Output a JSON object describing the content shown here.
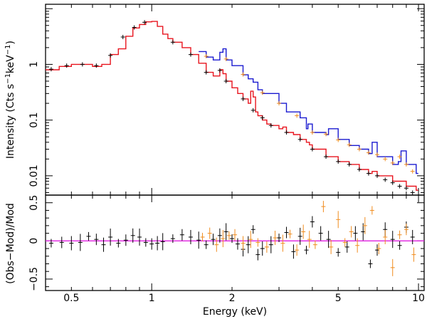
{
  "chart_data": [
    {
      "type": "line",
      "panel": "spectrum",
      "xlabel": "",
      "ylabel_prefix": "Intensity (Cts s",
      "ylabel_sup1": "−1",
      "ylabel_mid": "keV",
      "ylabel_sup2": "−1",
      "ylabel_suffix": ")",
      "xscale": "log",
      "yscale": "log",
      "xlim": [
        0.4,
        10.5
      ],
      "ylim": [
        0.0045,
        12
      ],
      "y_ticks": [
        {
          "value": 1,
          "label": "1"
        },
        {
          "value": 0.1,
          "label": "0.1"
        },
        {
          "value": 0.01,
          "label": "0.01"
        }
      ],
      "colors": {
        "black_data": "#000000",
        "orange_data": "#f08c1e",
        "red_model": "#e8141e",
        "blue_model": "#1a1ad0"
      },
      "series": [
        {
          "color_key": "red_model",
          "style": "step",
          "x": [
            0.4,
            0.45,
            0.5,
            0.55,
            0.6,
            0.65,
            0.7,
            0.75,
            0.8,
            0.85,
            0.9,
            0.95,
            1.0,
            1.05,
            1.1,
            1.15,
            1.2,
            1.3,
            1.4,
            1.5,
            1.6,
            1.7,
            1.8,
            1.85,
            1.9,
            2.0,
            2.1,
            2.2,
            2.3,
            2.35,
            2.4,
            2.45,
            2.5,
            2.6,
            2.7,
            2.8,
            3.0,
            3.1,
            3.2,
            3.4,
            3.6,
            3.8,
            3.9,
            4.0,
            4.5,
            5.0,
            5.5,
            6.0,
            6.5,
            6.7,
            7.0,
            8.0,
            9.0,
            9.8
          ],
          "y": [
            0.8,
            0.92,
            1.0,
            1.0,
            0.92,
            1.0,
            1.5,
            1.9,
            3.2,
            4.5,
            5.2,
            5.8,
            5.9,
            4.8,
            3.5,
            2.9,
            2.5,
            2.0,
            1.5,
            1.05,
            0.72,
            0.62,
            0.8,
            0.68,
            0.5,
            0.38,
            0.3,
            0.24,
            0.2,
            0.33,
            0.26,
            0.14,
            0.12,
            0.1,
            0.085,
            0.08,
            0.07,
            0.075,
            0.06,
            0.055,
            0.045,
            0.04,
            0.036,
            0.03,
            0.022,
            0.018,
            0.016,
            0.013,
            0.011,
            0.012,
            0.01,
            0.008,
            0.0065,
            0.0055
          ]
        },
        {
          "color_key": "blue_model",
          "style": "step",
          "x": [
            1.5,
            1.6,
            1.7,
            1.8,
            1.85,
            1.9,
            2.0,
            2.2,
            2.3,
            2.4,
            2.5,
            2.6,
            3.0,
            3.2,
            3.6,
            3.8,
            3.85,
            4.0,
            4.5,
            4.6,
            5.0,
            5.5,
            6.0,
            6.5,
            6.7,
            7.0,
            8.0,
            8.4,
            8.6,
            9.0,
            9.8
          ],
          "y": [
            1.7,
            1.35,
            1.2,
            1.65,
            1.9,
            1.2,
            0.95,
            0.65,
            0.55,
            0.48,
            0.35,
            0.3,
            0.2,
            0.14,
            0.11,
            0.07,
            0.085,
            0.06,
            0.055,
            0.07,
            0.045,
            0.035,
            0.03,
            0.025,
            0.04,
            0.022,
            0.016,
            0.018,
            0.028,
            0.016,
            0.011
          ]
        },
        {
          "color_key": "black_data",
          "style": "points",
          "x": [
            0.42,
            0.48,
            0.55,
            0.62,
            0.7,
            0.78,
            0.86,
            0.94,
            1.2,
            1.4,
            1.6,
            1.8,
            1.9,
            2.2,
            2.4,
            2.6,
            2.8,
            3.2,
            3.6,
            4.0,
            4.5,
            5.0,
            5.5,
            6.0,
            6.5,
            7.0,
            7.5,
            8.0,
            8.5,
            9.0,
            9.5
          ],
          "y": [
            0.82,
            0.95,
            1.0,
            0.95,
            1.45,
            3.1,
            4.6,
            5.7,
            2.5,
            1.5,
            0.72,
            0.78,
            0.5,
            0.24,
            0.15,
            0.11,
            0.08,
            0.06,
            0.045,
            0.03,
            0.022,
            0.018,
            0.016,
            0.013,
            0.011,
            0.01,
            0.0085,
            0.0075,
            0.0065,
            0.006,
            0.005
          ]
        },
        {
          "color_key": "orange_data",
          "style": "points",
          "x": [
            1.6,
            1.9,
            2.2,
            2.6,
            3.0,
            3.5,
            4.0,
            4.5,
            5.0,
            5.5,
            6.0,
            6.5,
            7.0,
            7.5,
            8.0,
            8.5,
            9.0,
            9.5
          ],
          "y": [
            1.4,
            1.25,
            0.66,
            0.31,
            0.2,
            0.12,
            0.06,
            0.056,
            0.044,
            0.036,
            0.03,
            0.026,
            0.024,
            0.02,
            0.017,
            0.022,
            0.016,
            0.012
          ]
        }
      ]
    },
    {
      "type": "scatter",
      "panel": "residuals",
      "xlabel": "Energy (keV)",
      "ylabel": "(Obs−Mod)/Mod",
      "xscale": "log",
      "yscale": "linear",
      "xlim": [
        0.4,
        10.5
      ],
      "ylim": [
        -0.65,
        0.6
      ],
      "y_ticks": [
        {
          "value": 0.5,
          "label": "0.5"
        },
        {
          "value": 0,
          "label": "0"
        },
        {
          "value": -0.5,
          "label": "−0.5"
        }
      ],
      "x_ticks": [
        {
          "value": 0.5,
          "label": "0.5"
        },
        {
          "value": 1,
          "label": "1"
        },
        {
          "value": 2,
          "label": "2"
        },
        {
          "value": 5,
          "label": "5"
        },
        {
          "value": 10,
          "label": "10"
        }
      ],
      "colors": {
        "black_data": "#000000",
        "orange_data": "#f08c1e",
        "zero_line": "#e020e0"
      },
      "zero_line": 0,
      "series": [
        {
          "color_key": "black_data",
          "x": [
            0.42,
            0.46,
            0.5,
            0.54,
            0.58,
            0.62,
            0.66,
            0.7,
            0.75,
            0.8,
            0.85,
            0.9,
            0.95,
            1.0,
            1.05,
            1.1,
            1.2,
            1.3,
            1.4,
            1.5,
            1.6,
            1.7,
            1.8,
            1.9,
            2.0,
            2.1,
            2.2,
            2.3,
            2.4,
            2.5,
            2.6,
            2.8,
            3.0,
            3.2,
            3.4,
            3.6,
            3.8,
            4.0,
            4.3,
            4.6,
            5.0,
            5.4,
            5.8,
            6.2,
            6.6,
            7.0,
            7.5,
            8.0,
            8.5,
            9.0,
            9.5
          ],
          "y": [
            -0.03,
            -0.02,
            -0.03,
            -0.02,
            0.06,
            0.02,
            -0.05,
            0.05,
            -0.03,
            0.01,
            0.07,
            0.05,
            -0.02,
            -0.04,
            -0.03,
            -0.01,
            0.03,
            0.08,
            0.05,
            0.01,
            -0.05,
            0.02,
            0.07,
            0.12,
            0.03,
            -0.04,
            -0.11,
            -0.05,
            0.15,
            -0.18,
            -0.1,
            -0.05,
            0.04,
            0.11,
            -0.14,
            0.06,
            -0.12,
            0.25,
            0.1,
            0.02,
            -0.15,
            -0.08,
            0.1,
            0.12,
            -0.3,
            -0.12,
            0.15,
            0.02,
            -0.06,
            0.18,
            0.05
          ]
        },
        {
          "color_key": "orange_data",
          "x": [
            1.55,
            1.65,
            1.75,
            1.85,
            1.95,
            2.05,
            2.2,
            2.35,
            2.5,
            2.7,
            2.9,
            3.1,
            3.3,
            3.5,
            3.7,
            3.9,
            4.1,
            4.4,
            4.7,
            5.0,
            5.3,
            5.6,
            5.9,
            6.3,
            6.7,
            7.1,
            7.5,
            8.0,
            8.5,
            9.0,
            9.6
          ],
          "y": [
            0.05,
            0.1,
            -0.05,
            0.03,
            0.07,
            0.08,
            -0.03,
            0.02,
            -0.02,
            -0.08,
            0.04,
            -0.03,
            0.09,
            -0.12,
            0.12,
            0.02,
            -0.05,
            0.45,
            -0.08,
            0.28,
            -0.02,
            0.12,
            -0.06,
            0.2,
            0.4,
            -0.1,
            0.05,
            -0.35,
            0.08,
            0.15,
            -0.18
          ]
        }
      ]
    }
  ]
}
